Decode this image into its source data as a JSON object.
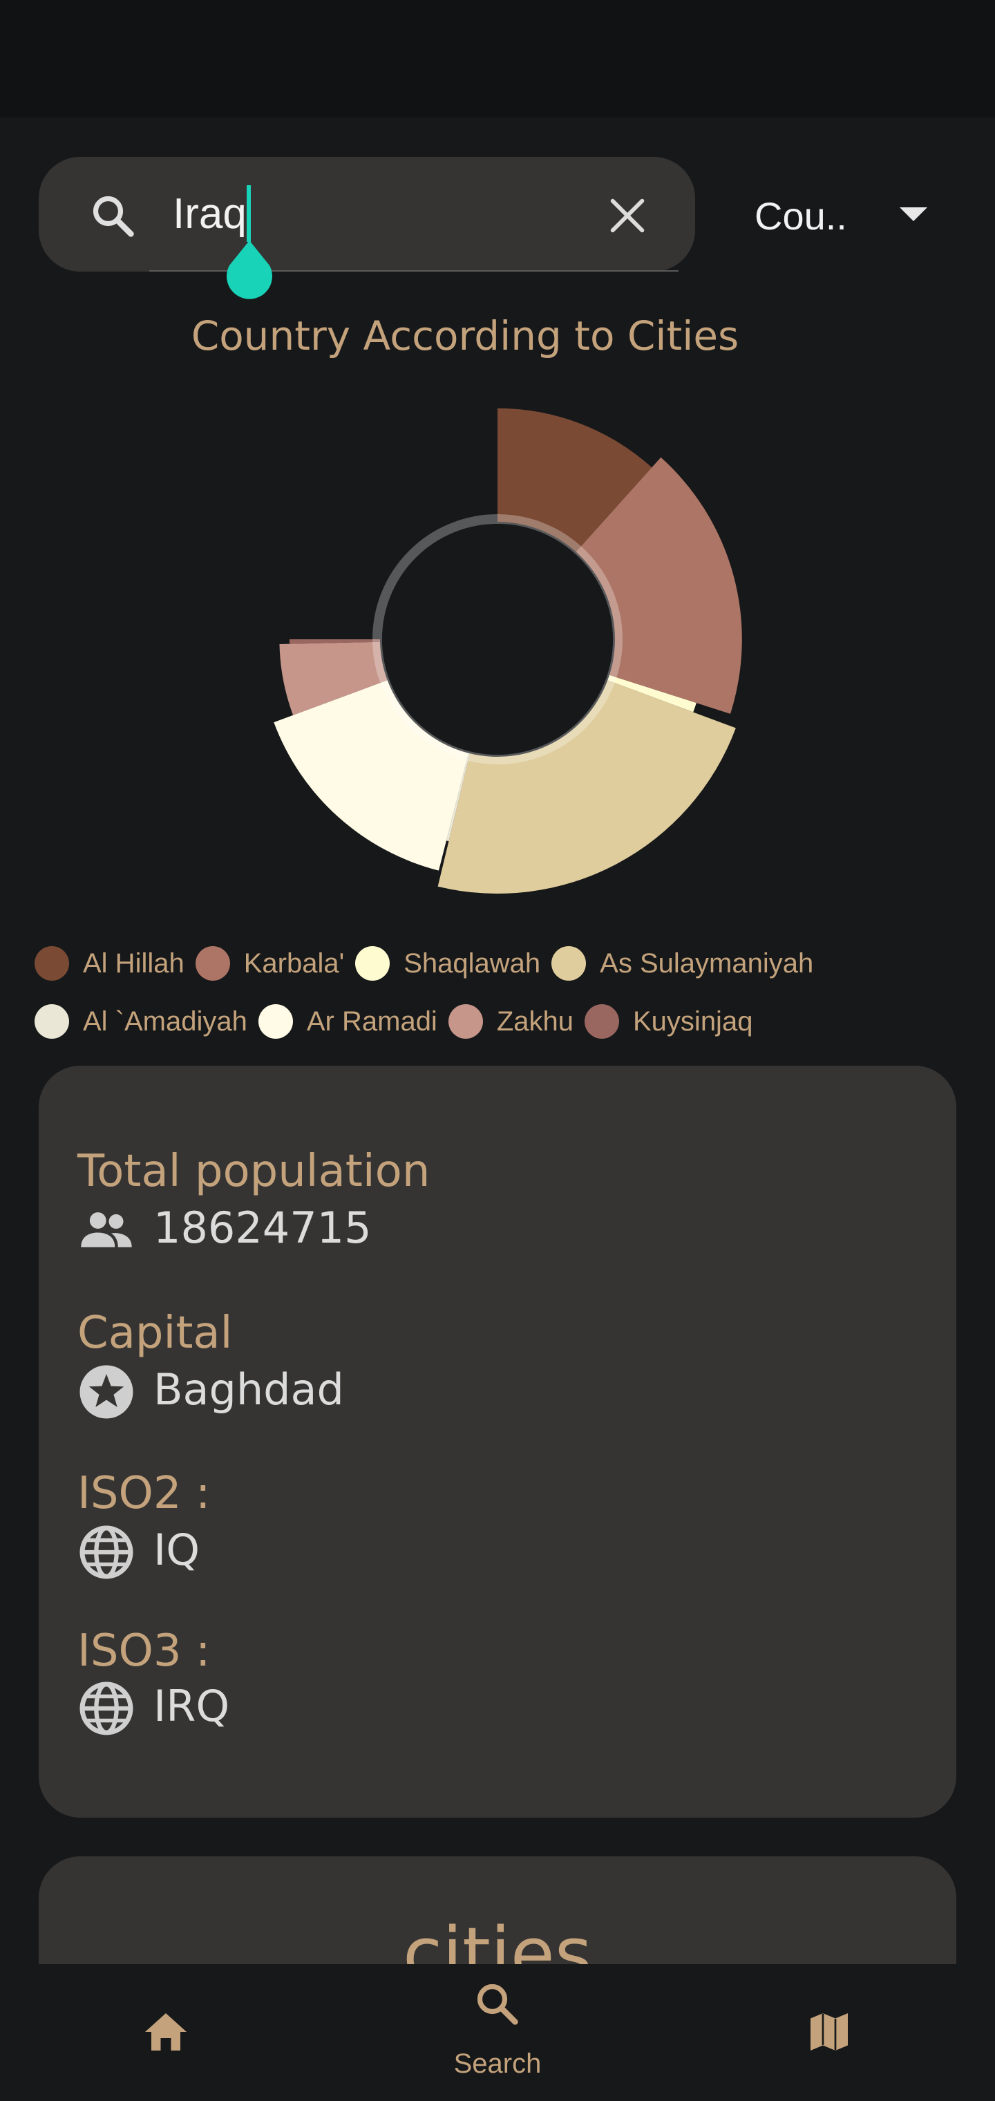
{
  "search": {
    "value": "Iraq",
    "placeholder": ""
  },
  "dropdown": {
    "selected": "Cou.."
  },
  "chart_data": {
    "type": "pie",
    "title": "Country According to Cities",
    "legend_position": "bottom",
    "categories": [
      "Al Hillah",
      "Karbala'",
      "Shaqlawah",
      "As Sulaymaniyah",
      "Al `Amadiyah",
      "Ar Ramadi",
      "Zakhu",
      "Kuysinjaq"
    ],
    "values": [
      364700,
      572300,
      23300,
      723170,
      6000,
      481555,
      166100,
      11000
    ],
    "colors": [
      "#7a4a34",
      "#ad7565",
      "#fffbd0",
      "#e0cd9d",
      "#ebe7d6",
      "#fffbe6",
      "#c6968a",
      "#9a6660"
    ]
  },
  "stats": {
    "population_label": "Total population",
    "population_value": "18624715",
    "capital_label": "Capital",
    "capital_value": "Baghdad",
    "iso2_label": "ISO2 :",
    "iso2_value": "IQ",
    "iso3_label": "ISO3 :",
    "iso3_value": "IRQ"
  },
  "cities_section": {
    "title": "cities"
  },
  "nav": {
    "home_icon": "home-icon",
    "search_icon": "search-icon",
    "search_label": "Search",
    "map_icon": "map-icon"
  }
}
